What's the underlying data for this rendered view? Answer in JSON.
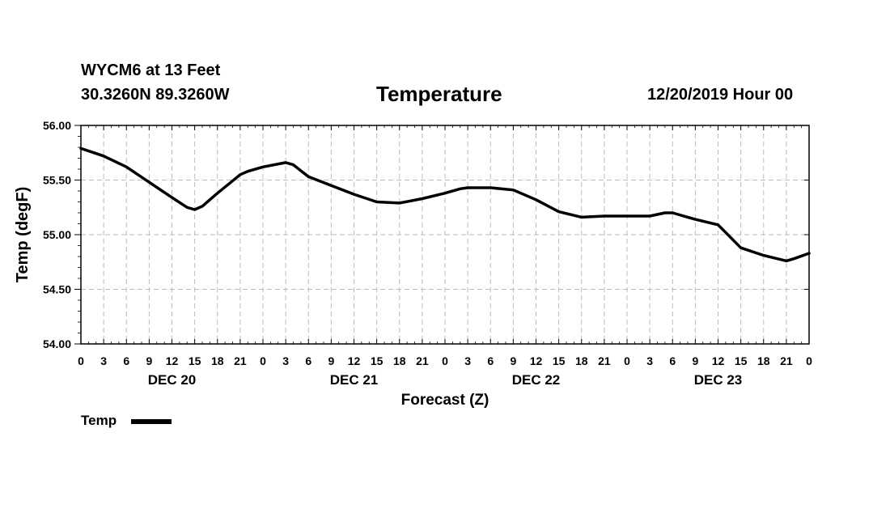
{
  "header": {
    "station_line": "WYCM6 at 13 Feet",
    "coords_line": "30.3260N 89.3260W",
    "title": "Temperature",
    "datetime": "12/20/2019 Hour 00"
  },
  "legend": {
    "label": "Temp"
  },
  "colors": {
    "line": "#000000",
    "grid": "#bbbbbb",
    "axis": "#000000"
  },
  "chart_data": {
    "type": "line",
    "title": "Temperature",
    "xlabel": "Forecast (Z)",
    "ylabel": "Temp (degF)",
    "ylim": [
      54.0,
      56.0
    ],
    "xlim": [
      0,
      96
    ],
    "grid": true,
    "legend_position": "bottom-left",
    "y_ticks": [
      "54.00",
      "54.50",
      "55.00",
      "55.50",
      "56.00"
    ],
    "x_tick_labels": [
      "0",
      "3",
      "6",
      "9",
      "12",
      "15",
      "18",
      "21",
      "0",
      "3",
      "6",
      "9",
      "12",
      "15",
      "18",
      "21",
      "0",
      "3",
      "6",
      "9",
      "12",
      "15",
      "18",
      "21",
      "0",
      "3",
      "6",
      "9",
      "12",
      "15",
      "18",
      "21",
      "0"
    ],
    "day_labels": [
      "DEC 20",
      "DEC 21",
      "DEC 22",
      "DEC 23"
    ],
    "series": [
      {
        "name": "Temp",
        "x": [
          0,
          3,
          6,
          9,
          12,
          14,
          15,
          16,
          18,
          21,
          22,
          24,
          27,
          28,
          30,
          33,
          36,
          39,
          42,
          45,
          48,
          50,
          51,
          54,
          57,
          60,
          63,
          66,
          69,
          72,
          75,
          77,
          78,
          80,
          81,
          84,
          87,
          90,
          93,
          94,
          96
        ],
        "values": [
          55.79,
          55.72,
          55.62,
          55.48,
          55.34,
          55.25,
          55.23,
          55.26,
          55.38,
          55.55,
          55.58,
          55.62,
          55.66,
          55.64,
          55.53,
          55.45,
          55.37,
          55.3,
          55.29,
          55.33,
          55.38,
          55.42,
          55.43,
          55.43,
          55.41,
          55.32,
          55.21,
          55.16,
          55.17,
          55.17,
          55.17,
          55.2,
          55.2,
          55.16,
          55.14,
          55.09,
          54.88,
          54.81,
          54.76,
          54.78,
          54.83
        ]
      }
    ]
  }
}
